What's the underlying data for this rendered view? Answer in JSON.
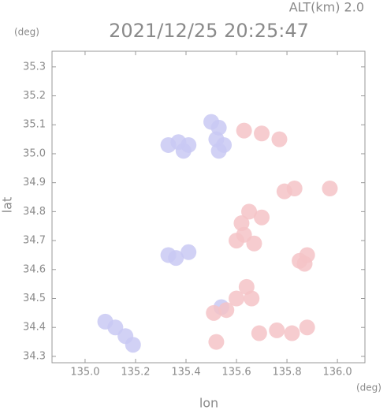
{
  "chart_data": {
    "type": "scatter",
    "alt_label": "ALT(km) 2.0",
    "title": "2021/12/25 20:25:47",
    "y_unit": "(deg)",
    "x_unit": "(deg)",
    "xlabel": "lon",
    "ylabel": "lat",
    "xlim": [
      134.869,
      136.109
    ],
    "ylim": [
      34.278,
      35.354
    ],
    "xticks": [
      {
        "value": 135.0,
        "label": "135.0"
      },
      135.2,
      135.4,
      135.6,
      135.8,
      {
        "value": 136.0,
        "label": "136.0"
      }
    ],
    "yticks": [
      34.3,
      34.4,
      34.5,
      34.6,
      34.7,
      34.8,
      34.9,
      {
        "value": 35.0,
        "label": "35.0"
      },
      35.1,
      35.2,
      35.3
    ],
    "series": [
      {
        "color": "#c9c9f3",
        "x": [
          135.33,
          135.37,
          135.41,
          135.39,
          135.5,
          135.53,
          135.52,
          135.55,
          135.53,
          135.08,
          135.12,
          135.16,
          135.19,
          135.33,
          135.36,
          135.41,
          135.54
        ],
        "y": [
          35.03,
          35.04,
          35.03,
          35.01,
          35.11,
          35.09,
          35.05,
          35.03,
          35.01,
          34.42,
          34.4,
          34.37,
          34.34,
          34.65,
          34.64,
          34.66,
          34.47
        ]
      },
      {
        "color": "#f5c3c7",
        "x": [
          135.63,
          135.7,
          135.77,
          135.79,
          135.83,
          135.97,
          135.65,
          135.62,
          135.7,
          135.63,
          135.67,
          135.6,
          135.87,
          135.88,
          135.85,
          135.64,
          135.66,
          135.6,
          135.51,
          135.56,
          135.76,
          135.82,
          135.88,
          135.69,
          135.52
        ],
        "y": [
          35.08,
          35.07,
          35.05,
          34.87,
          34.88,
          34.88,
          34.8,
          34.76,
          34.78,
          34.72,
          34.69,
          34.7,
          34.62,
          34.65,
          34.63,
          34.54,
          34.5,
          34.5,
          34.45,
          34.46,
          34.39,
          34.38,
          34.4,
          34.38,
          34.35
        ]
      }
    ]
  }
}
